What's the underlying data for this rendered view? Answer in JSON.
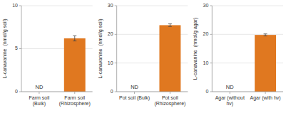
{
  "chart_data": [
    {
      "type": "bar",
      "categories": [
        "Farm soil (Bulk)",
        "Farm soil\n(Rhizosphere)"
      ],
      "values": [
        null,
        6.2
      ],
      "errors": [
        null,
        0.3
      ],
      "value_labels": [
        "ND",
        null
      ],
      "ylabel": "L-canavanine  (nmol/g soil)",
      "ylim": [
        0,
        10
      ],
      "yticks": [
        0,
        5,
        10
      ],
      "color": "#E07820",
      "grid": true
    },
    {
      "type": "bar",
      "categories": [
        "Pot soil (Bulk)",
        "Pot soil\n(Rhizosphere)"
      ],
      "values": [
        null,
        23.2
      ],
      "errors": [
        null,
        0.45
      ],
      "value_labels": [
        "ND",
        null
      ],
      "ylabel": "L-canavanine  (nmol/g soil)",
      "ylim": [
        0,
        30
      ],
      "yticks": [
        0,
        10,
        20,
        30
      ],
      "color": "#E07820",
      "grid": true
    },
    {
      "type": "bar",
      "categories": [
        "Agar (without hv)",
        "Agar (with hv)"
      ],
      "values": [
        null,
        19.8
      ],
      "errors": [
        null,
        0.35
      ],
      "value_labels": [
        "ND",
        null
      ],
      "ylabel": "L-canavanine  (nmol/g agar)",
      "ylim": [
        0,
        30
      ],
      "yticks": [
        0,
        10,
        20,
        30
      ],
      "color": "#E07820",
      "grid": true
    }
  ]
}
